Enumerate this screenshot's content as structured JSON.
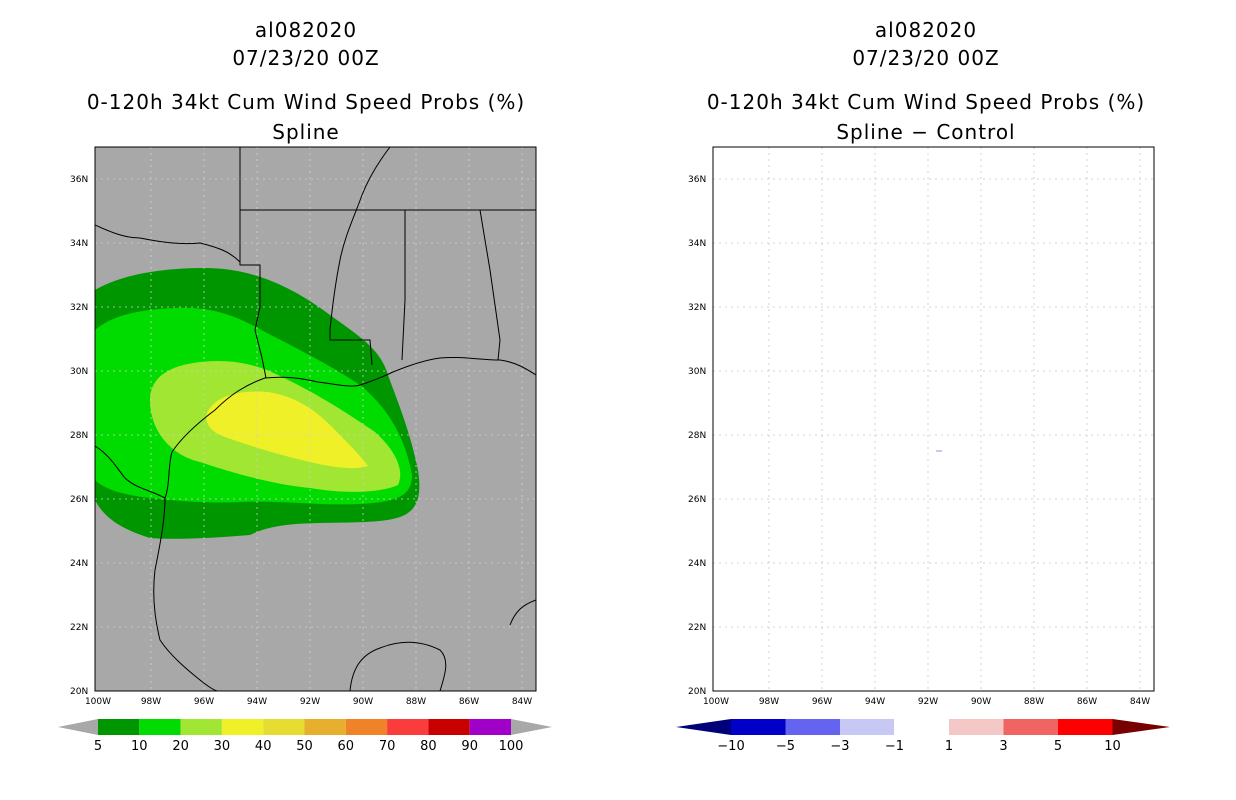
{
  "left": {
    "storm": "al082020",
    "datetime": "07/23/20 00Z",
    "title": "0-120h 34kt Cum Wind Speed Probs (%)",
    "subtitle": "Spline",
    "background": "#a8a8a8",
    "colorbar": {
      "colors": [
        "#009600",
        "#00dc00",
        "#a0e632",
        "#f0f028",
        "#e6dc32",
        "#e6af2d",
        "#f08228",
        "#fa3c3c",
        "#c80000",
        "#a000c8"
      ],
      "labels": [
        "5",
        "10",
        "20",
        "30",
        "40",
        "50",
        "60",
        "70",
        "80",
        "90",
        "100"
      ]
    },
    "contours": [
      {
        "level": 5,
        "color": "#009600"
      },
      {
        "level": 10,
        "color": "#00dc00"
      },
      {
        "level": 20,
        "color": "#a0e632"
      },
      {
        "level": 30,
        "color": "#f0f028"
      }
    ]
  },
  "right": {
    "storm": "al082020",
    "datetime": "07/23/20 00Z",
    "title": "0-120h 34kt Cum Wind Speed Probs (%)",
    "subtitle": "Spline − Control",
    "background": "#ffffff",
    "colorbar": {
      "colors": [
        "#0000c8",
        "#6464f0",
        "#c8c8f5",
        "#ffffff",
        "#f5c8c8",
        "#f06464",
        "#ff0000"
      ],
      "end_left": "#000078",
      "end_right": "#780000",
      "labels": [
        "−10",
        "−5",
        "−3",
        "−1",
        "1",
        "3",
        "5",
        "10"
      ]
    }
  },
  "axes": {
    "lat_labels": [
      "36N",
      "34N",
      "32N",
      "30N",
      "28N",
      "26N",
      "24N",
      "22N",
      "20N"
    ],
    "lon_labels": [
      "100W",
      "98W",
      "96W",
      "94W",
      "92W",
      "90W",
      "88W",
      "86W",
      "84W"
    ]
  }
}
